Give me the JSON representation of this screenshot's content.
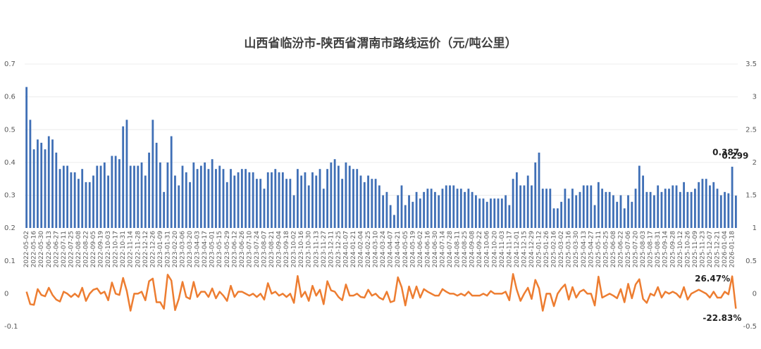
{
  "chart_data": {
    "type": "bar_line",
    "title": "山西省临汾市-陕西省渭南市路线运价（元/吨公里）",
    "categories": [
      "2022-05-02",
      null,
      "2022-05-16",
      null,
      "2022-05-30",
      null,
      "2022-06-13",
      null,
      "2022-06-27",
      null,
      "2022-07-11",
      null,
      "2022-07-25",
      null,
      "2022-08-08",
      null,
      "2022-08-22",
      null,
      "2022-09-05",
      null,
      "2022-09-19",
      null,
      "2022-10-03",
      null,
      "2022-10-17",
      null,
      "2022-10-31",
      null,
      "2022-11-14",
      null,
      "2022-11-28",
      null,
      "2022-12-12",
      null,
      "2022-12-26",
      null,
      "2023-01-09",
      null,
      "2023-01-31",
      null,
      "2023-02-20",
      null,
      "2023-03-06",
      null,
      "2023-03-20",
      null,
      "2023-04-03",
      null,
      "2023-04-17",
      null,
      "2023-05-01",
      null,
      "2023-05-15",
      null,
      "2023-05-29",
      null,
      "2023-06-12",
      null,
      "2023-06-26",
      null,
      "2023-07-10",
      null,
      "2023-07-24",
      null,
      "2023-08-07",
      null,
      "2023-08-21",
      null,
      "2023-09-04",
      null,
      "2023-09-18",
      null,
      "2023-10-02",
      null,
      "2023-10-16",
      null,
      "2023-10-30",
      null,
      "2023-11-13",
      null,
      "2023-11-27",
      null,
      "2023-12-11",
      null,
      "2023-12-25",
      null,
      "2024-01-07",
      null,
      "2024-01-21",
      null,
      "2024-02-04",
      null,
      "2024-02-25",
      null,
      "2024-03-10",
      null,
      "2024-03-24",
      null,
      "2024-04-07",
      null,
      "2024-04-21",
      null,
      "2024-05-05",
      null,
      "2024-05-19",
      null,
      "2024-06-02",
      null,
      "2024-06-16",
      null,
      "2024-06-30",
      null,
      "2024-07-14",
      null,
      "2024-07-28",
      null,
      "2024-08-11",
      null,
      "2024-08-25",
      null,
      "2024-09-08",
      null,
      "2024-09-22",
      null,
      "2024-10-06",
      null,
      "2024-10-20",
      null,
      "2024-11-03",
      null,
      "2024-11-17",
      null,
      "2024-12-01",
      null,
      "2024-12-15",
      null,
      "2024-12-29",
      null,
      "2025-01-12",
      null,
      "2025-01-26",
      null,
      "2025-02-16",
      null,
      "2025-03-02",
      null,
      "2025-03-16",
      null,
      "2025-03-30",
      null,
      "2025-04-13",
      null,
      "2025-04-27",
      null,
      "2025-05-11",
      null,
      "2025-05-25",
      null,
      "2025-06-08",
      null,
      "2025-06-22",
      null,
      "2025-07-06",
      null,
      "2025-07-20",
      null,
      "2025-08-03",
      null,
      "2025-08-17",
      null,
      "2025-08-31",
      null,
      "2025-09-14",
      null,
      "2025-09-28",
      null,
      "2025-10-12",
      null,
      "2025-10-26",
      null,
      "2025-11-09",
      null,
      "2025-11-23",
      null,
      "2025-12-07",
      null,
      "2025-12-21",
      null,
      "2026-01-04",
      null,
      "2026-01-18",
      null
    ],
    "series": [
      {
        "type": "bar",
        "color": "#3f6fb6",
        "values": [
          0.63,
          0.53,
          0.44,
          0.47,
          0.46,
          0.44,
          0.48,
          0.47,
          0.43,
          0.38,
          0.39,
          0.39,
          0.37,
          0.37,
          0.35,
          0.38,
          0.34,
          0.34,
          0.36,
          0.39,
          0.39,
          0.4,
          0.36,
          0.42,
          0.42,
          0.41,
          0.51,
          0.53,
          0.39,
          0.39,
          0.39,
          0.4,
          0.36,
          0.43,
          0.53,
          0.46,
          0.4,
          0.31,
          0.4,
          0.48,
          0.36,
          0.33,
          0.39,
          0.37,
          0.34,
          0.4,
          0.38,
          0.39,
          0.4,
          0.38,
          0.41,
          0.38,
          0.39,
          0.38,
          0.34,
          0.38,
          0.36,
          0.37,
          0.38,
          0.38,
          0.37,
          0.37,
          0.35,
          0.35,
          0.32,
          0.37,
          0.37,
          0.38,
          0.37,
          0.37,
          0.35,
          0.35,
          0.3,
          0.38,
          0.36,
          0.37,
          0.33,
          0.37,
          0.36,
          0.38,
          0.32,
          0.38,
          0.4,
          0.41,
          0.39,
          0.35,
          0.4,
          0.39,
          0.38,
          0.38,
          0.36,
          0.34,
          0.36,
          0.35,
          0.35,
          0.33,
          0.3,
          0.31,
          0.27,
          0.24,
          0.3,
          0.33,
          0.27,
          0.3,
          0.28,
          0.31,
          0.29,
          0.31,
          0.32,
          0.32,
          0.31,
          0.3,
          0.32,
          0.33,
          0.33,
          0.33,
          0.32,
          0.32,
          0.31,
          0.32,
          0.31,
          0.3,
          0.29,
          0.29,
          0.28,
          0.29,
          0.29,
          0.29,
          0.29,
          0.3,
          0.27,
          0.35,
          0.37,
          0.33,
          0.33,
          0.36,
          0.33,
          0.4,
          0.43,
          0.32,
          0.32,
          0.32,
          0.26,
          0.26,
          0.28,
          0.32,
          0.29,
          0.32,
          0.3,
          0.31,
          0.33,
          0.33,
          0.33,
          0.27,
          0.34,
          0.32,
          0.31,
          0.31,
          0.3,
          0.28,
          0.3,
          0.26,
          0.3,
          0.28,
          0.32,
          0.39,
          0.36,
          0.31,
          0.31,
          0.3,
          0.33,
          0.31,
          0.32,
          0.32,
          0.33,
          0.33,
          0.31,
          0.34,
          0.31,
          0.31,
          0.32,
          0.34,
          0.35,
          0.35,
          0.33,
          0.34,
          0.32,
          0.3,
          0.31,
          0.306,
          0.387,
          0.299
        ]
      },
      {
        "type": "line",
        "color": "#ed7d31",
        "axis": "y2",
        "values": [
          0.03,
          -0.16,
          -0.17,
          0.07,
          -0.02,
          -0.04,
          0.09,
          -0.02,
          -0.09,
          -0.12,
          0.03,
          0.0,
          -0.05,
          0.0,
          -0.05,
          0.09,
          -0.11,
          0.0,
          0.06,
          0.08,
          0.0,
          0.03,
          -0.1,
          0.17,
          0.0,
          -0.02,
          0.24,
          0.04,
          -0.26,
          0.0,
          0.0,
          0.03,
          -0.1,
          0.19,
          0.23,
          -0.13,
          -0.13,
          -0.23,
          0.29,
          0.2,
          -0.25,
          -0.08,
          0.18,
          -0.05,
          -0.08,
          0.18,
          -0.05,
          0.03,
          0.03,
          -0.05,
          0.08,
          -0.07,
          0.03,
          -0.03,
          -0.11,
          0.12,
          -0.05,
          0.03,
          0.03,
          0.0,
          -0.03,
          0.0,
          -0.05,
          0.0,
          -0.09,
          0.16,
          0.0,
          0.03,
          -0.03,
          0.0,
          -0.05,
          0.0,
          -0.14,
          0.27,
          -0.05,
          0.03,
          -0.11,
          0.12,
          -0.03,
          0.06,
          -0.16,
          0.19,
          0.05,
          0.03,
          -0.05,
          -0.1,
          0.14,
          -0.03,
          -0.03,
          0.0,
          -0.05,
          -0.06,
          0.06,
          -0.03,
          0.0,
          -0.06,
          -0.09,
          0.03,
          -0.13,
          -0.11,
          0.25,
          0.1,
          -0.18,
          0.11,
          -0.07,
          0.11,
          -0.06,
          0.07,
          0.03,
          0.0,
          -0.03,
          -0.03,
          0.07,
          0.03,
          0.0,
          0.0,
          -0.03,
          0.0,
          -0.03,
          0.03,
          -0.03,
          -0.03,
          -0.03,
          0.0,
          -0.03,
          0.04,
          0.0,
          0.0,
          0.0,
          0.03,
          -0.1,
          0.3,
          0.06,
          -0.11,
          0.0,
          0.09,
          -0.08,
          0.21,
          0.08,
          -0.26,
          0.0,
          0.0,
          -0.19,
          0.0,
          0.08,
          0.14,
          -0.09,
          0.1,
          -0.06,
          0.03,
          0.06,
          0.0,
          0.0,
          -0.18,
          0.26,
          -0.06,
          -0.03,
          0.0,
          -0.03,
          -0.07,
          0.07,
          -0.13,
          0.15,
          -0.07,
          0.14,
          0.22,
          -0.08,
          -0.14,
          0.0,
          -0.03,
          0.1,
          -0.06,
          0.03,
          0.0,
          0.03,
          0.0,
          -0.06,
          0.1,
          -0.09,
          0.0,
          0.03,
          0.06,
          0.03,
          0.0,
          -0.06,
          0.03,
          -0.06,
          -0.06,
          0.03,
          -0.01,
          0.2647,
          -0.2283
        ],
        "value_labels": [
          null,
          null,
          null,
          null,
          null,
          null,
          null,
          null,
          null,
          null,
          null,
          null,
          null,
          null,
          null,
          null,
          null,
          null,
          null,
          null,
          null,
          null,
          null,
          null,
          null,
          null,
          null,
          null,
          null,
          null,
          null,
          null,
          null,
          null,
          null,
          null,
          null,
          null,
          null,
          null,
          null,
          null,
          null,
          null,
          null,
          null,
          null,
          null,
          null,
          null,
          null,
          null,
          null,
          null,
          null,
          null,
          null,
          null,
          null,
          null,
          null,
          null,
          null,
          null,
          null,
          null,
          null,
          null,
          null,
          null,
          null,
          null,
          null,
          null,
          null,
          null,
          null,
          null,
          null,
          null,
          null,
          null,
          null,
          null,
          null,
          null,
          null,
          null,
          null,
          null,
          null,
          null,
          null,
          null,
          null,
          null,
          null,
          null,
          null,
          null,
          null,
          null,
          null,
          null,
          null,
          null,
          null,
          null,
          null,
          null,
          null,
          null,
          null,
          null,
          null,
          null,
          null,
          null,
          null,
          null,
          null,
          null,
          null,
          null,
          null,
          null,
          null,
          null,
          null,
          null,
          null,
          null,
          null,
          null,
          null,
          null,
          null,
          null,
          null,
          null,
          null,
          null,
          null,
          null,
          null,
          null,
          null,
          null,
          null,
          null,
          null,
          null,
          null,
          null,
          null,
          null,
          null,
          null,
          null,
          null,
          null,
          null,
          null,
          null,
          null,
          null,
          null,
          null,
          null,
          null,
          null,
          null,
          null,
          null,
          null,
          null,
          null,
          null,
          null,
          null,
          null,
          null,
          null,
          null,
          null,
          null,
          null,
          null,
          null,
          null,
          "26.47%",
          "-22.83%"
        ]
      }
    ],
    "labeled_bars": [
      190,
      191
    ],
    "ylim": [
      -0.1,
      0.7
    ],
    "yticks": [
      -0.1,
      0,
      0.1,
      0.2,
      0.3,
      0.4,
      0.5,
      0.6,
      0.7
    ],
    "y2lim": [
      -0.5,
      3.5
    ],
    "y2ticks": [
      -0.5,
      0,
      0.5,
      1,
      1.5,
      2,
      2.5,
      3,
      3.5
    ],
    "grid": true
  }
}
